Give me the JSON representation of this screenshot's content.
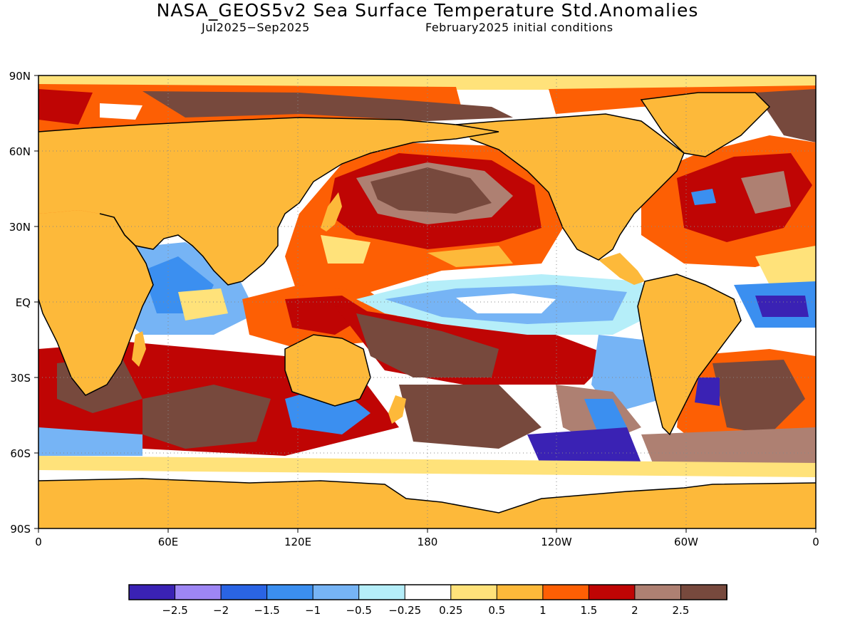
{
  "header": {
    "title": "NASA_GEOS5v2 Sea Surface Temperature Std.Anomalies",
    "period": "Jul2025−Sep2025",
    "init": "February2025 initial conditions"
  },
  "map": {
    "lat_labels": [
      "90N",
      "60N",
      "30N",
      "EQ",
      "30S",
      "60S",
      "90S"
    ],
    "lon_labels": [
      "0",
      "60E",
      "120E",
      "180",
      "120W",
      "60W",
      "0"
    ],
    "colors": {
      "land": "#fdb93a",
      "ocean_neutral": "#ffffff"
    }
  },
  "legend": {
    "colors": [
      "#3a22b4",
      "#9e86f4",
      "#2a64e4",
      "#3b8ff0",
      "#76b4f5",
      "#b5eef9",
      "#ffffff",
      "#ffe27a",
      "#fdb93a",
      "#fd5f04",
      "#bf0504",
      "#ae8072",
      "#77493d"
    ],
    "labels": [
      "−2.5",
      "−2",
      "−1.5",
      "−1",
      "−0.5",
      "−0.25",
      "0.25",
      "0.5",
      "1",
      "1.5",
      "2",
      "2.5"
    ]
  }
}
